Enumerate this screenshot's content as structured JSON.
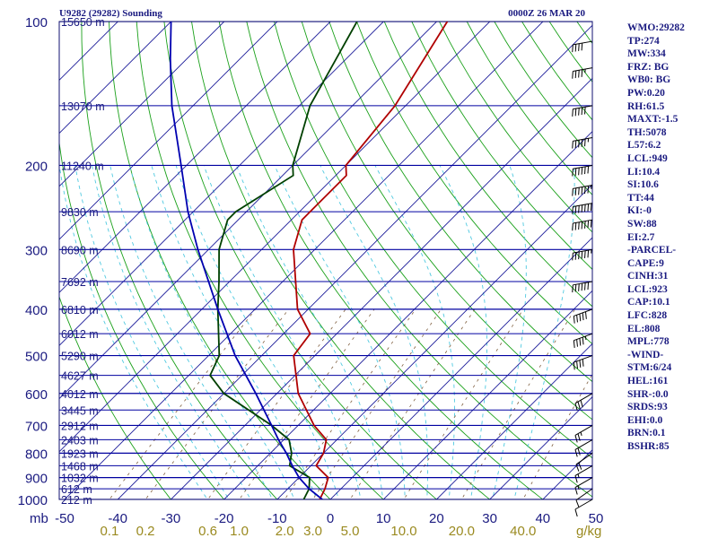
{
  "header": {
    "title": "U9282 (29282) Sounding",
    "datetime": "0000Z 26 MAR 20"
  },
  "colors": {
    "isobar": "#0000a0",
    "frame": "#101070",
    "temperature": "#b00000",
    "dewpoint": "#004000",
    "parcel": "#0000b0",
    "isotherm": "#1c1c9a",
    "dry_adiabat": "#1aa01a",
    "moist_adiabat": "#4fc9e0",
    "mixing_ratio": "#806040",
    "text": "#1a1a80",
    "mixing_label": "#9a8a20"
  },
  "stats": [
    "WMO:29282",
    "TP:274",
    "MW:334",
    "FRZ: BG",
    "WB0: BG",
    "PW:0.20",
    "RH:61.5",
    "MAXT:-1.5",
    "TH:5078",
    "L57:6.2",
    "LCL:949",
    "LI:10.4",
    "SI:10.6",
    "TT:44",
    "KI:-0",
    "SW:88",
    "EI:2.7",
    "-PARCEL-",
    "CAPE:9",
    "CINH:31",
    "LCL:923",
    "CAP:10.1",
    "LFC:828",
    "EL:808",
    "MPL:778",
    "-WIND-",
    "STM:6/24",
    "HEL:161",
    "SHR-:0.0",
    "SRDS:93",
    "EHI:0.0",
    "BRN:0.1",
    "BSHR:85"
  ],
  "chart_data": {
    "type": "line",
    "title": "U9282 (29282) Sounding",
    "subtitle": "0000Z 26 MAR 20",
    "ylabel": "mb",
    "xlabel": "",
    "ylim": [
      1000,
      100
    ],
    "xlim": [
      -50,
      50
    ],
    "y_scale": "log",
    "pressure_ticks": [
      "100",
      "200",
      "300",
      "400",
      "500",
      "600",
      "700",
      "800",
      "900",
      "1000"
    ],
    "temperature_ticks": [
      "-50",
      "-40",
      "-30",
      "-20",
      "-10",
      "0",
      "10",
      "20",
      "30",
      "40",
      "50"
    ],
    "mixing_ratio_ticks": [
      {
        "value": 0.1,
        "label": "0.1"
      },
      {
        "value": 0.2,
        "label": "0.2"
      },
      {
        "value": 0.6,
        "label": "0.6"
      },
      {
        "value": 1.0,
        "label": "1.0"
      },
      {
        "value": 2.0,
        "label": "2.0"
      },
      {
        "value": 3.0,
        "label": "3.0"
      },
      {
        "value": 5.0,
        "label": "5.0"
      },
      {
        "value": 10.0,
        "label": "10.0"
      },
      {
        "value": 20.0,
        "label": "20.0"
      },
      {
        "value": 40.0,
        "label": "40.0"
      }
    ],
    "mixing_ratio_unit": "g/kg",
    "height_labels": [
      {
        "p": 100,
        "label": "15650 m"
      },
      {
        "p": 150,
        "label": "13070 m"
      },
      {
        "p": 200,
        "label": "11240 m"
      },
      {
        "p": 250,
        "label": "9830 m"
      },
      {
        "p": 300,
        "label": "8690 m"
      },
      {
        "p": 350,
        "label": "7692 m"
      },
      {
        "p": 400,
        "label": "6810 m"
      },
      {
        "p": 450,
        "label": "6012 m"
      },
      {
        "p": 500,
        "label": "5290 m"
      },
      {
        "p": 550,
        "label": "4627 m"
      },
      {
        "p": 600,
        "label": "4012 m"
      },
      {
        "p": 650,
        "label": "3445 m"
      },
      {
        "p": 700,
        "label": "2912 m"
      },
      {
        "p": 750,
        "label": "2403 m"
      },
      {
        "p": 800,
        "label": "1923 m"
      },
      {
        "p": 850,
        "label": "1468 m"
      },
      {
        "p": 900,
        "label": "1032 m"
      },
      {
        "p": 950,
        "label": "612 m"
      },
      {
        "p": 1000,
        "label": "212 m"
      }
    ],
    "series": [
      {
        "key": "temperature",
        "points": [
          {
            "p": 1000,
            "t": -2.0
          },
          {
            "p": 950,
            "t": -3.0
          },
          {
            "p": 900,
            "t": -4.5
          },
          {
            "p": 850,
            "t": -9.0
          },
          {
            "p": 800,
            "t": -10.0
          },
          {
            "p": 750,
            "t": -12.0
          },
          {
            "p": 700,
            "t": -17.0
          },
          {
            "p": 600,
            "t": -26.0
          },
          {
            "p": 500,
            "t": -34.0
          },
          {
            "p": 450,
            "t": -35.0
          },
          {
            "p": 400,
            "t": -42.0
          },
          {
            "p": 300,
            "t": -54.0
          },
          {
            "p": 260,
            "t": -58.0
          },
          {
            "p": 250,
            "t": -58.0
          },
          {
            "p": 210,
            "t": -58.0
          },
          {
            "p": 200,
            "t": -60.0
          },
          {
            "p": 150,
            "t": -62.0
          },
          {
            "p": 100,
            "t": -68.0
          }
        ]
      },
      {
        "key": "dewpoint",
        "points": [
          {
            "p": 1000,
            "t": -5.0
          },
          {
            "p": 950,
            "t": -6.0
          },
          {
            "p": 900,
            "t": -8.0
          },
          {
            "p": 850,
            "t": -14.0
          },
          {
            "p": 800,
            "t": -16.0
          },
          {
            "p": 750,
            "t": -19.0
          },
          {
            "p": 700,
            "t": -25.0
          },
          {
            "p": 600,
            "t": -40.0
          },
          {
            "p": 550,
            "t": -46.0
          },
          {
            "p": 500,
            "t": -48.0
          },
          {
            "p": 400,
            "t": -57.0
          },
          {
            "p": 350,
            "t": -62.0
          },
          {
            "p": 300,
            "t": -68.0
          },
          {
            "p": 260,
            "t": -72.0
          },
          {
            "p": 250,
            "t": -72.0
          },
          {
            "p": 210,
            "t": -68.0
          },
          {
            "p": 200,
            "t": -70.0
          },
          {
            "p": 150,
            "t": -78.0
          },
          {
            "p": 100,
            "t": -85.0
          }
        ]
      },
      {
        "key": "parcel",
        "points": [
          {
            "p": 1000,
            "t": -1.5
          },
          {
            "p": 950,
            "t": -6.0
          },
          {
            "p": 900,
            "t": -10.0
          },
          {
            "p": 850,
            "t": -13.5
          },
          {
            "p": 800,
            "t": -17.0
          },
          {
            "p": 750,
            "t": -21.0
          },
          {
            "p": 700,
            "t": -25.0
          },
          {
            "p": 600,
            "t": -34.0
          },
          {
            "p": 500,
            "t": -45.0
          },
          {
            "p": 400,
            "t": -57.0
          },
          {
            "p": 300,
            "t": -72.0
          },
          {
            "p": 250,
            "t": -81.0
          },
          {
            "p": 200,
            "t": -91.0
          },
          {
            "p": 150,
            "t": -104.0
          },
          {
            "p": 120,
            "t": -113.0
          },
          {
            "p": 100,
            "t": -120.0
          }
        ]
      }
    ],
    "wind_barbs": [
      {
        "p": 1000,
        "dir": 300,
        "spd": 10
      },
      {
        "p": 950,
        "dir": 305,
        "spd": 10
      },
      {
        "p": 900,
        "dir": 300,
        "spd": 15
      },
      {
        "p": 850,
        "dir": 300,
        "spd": 15
      },
      {
        "p": 800,
        "dir": 305,
        "spd": 20
      },
      {
        "p": 750,
        "dir": 300,
        "spd": 20
      },
      {
        "p": 700,
        "dir": 300,
        "spd": 25
      },
      {
        "p": 600,
        "dir": 300,
        "spd": 30
      },
      {
        "p": 500,
        "dir": 290,
        "spd": 40
      },
      {
        "p": 450,
        "dir": 290,
        "spd": 45
      },
      {
        "p": 400,
        "dir": 290,
        "spd": 50
      },
      {
        "p": 350,
        "dir": 280,
        "spd": 60
      },
      {
        "p": 300,
        "dir": 280,
        "spd": 65
      },
      {
        "p": 260,
        "dir": 280,
        "spd": 70
      },
      {
        "p": 240,
        "dir": 280,
        "spd": 70
      },
      {
        "p": 220,
        "dir": 280,
        "spd": 65
      },
      {
        "p": 200,
        "dir": 280,
        "spd": 60
      },
      {
        "p": 175,
        "dir": 280,
        "spd": 55
      },
      {
        "p": 150,
        "dir": 280,
        "spd": 50
      },
      {
        "p": 125,
        "dir": 280,
        "spd": 45
      },
      {
        "p": 110,
        "dir": 280,
        "spd": 40
      }
    ]
  }
}
